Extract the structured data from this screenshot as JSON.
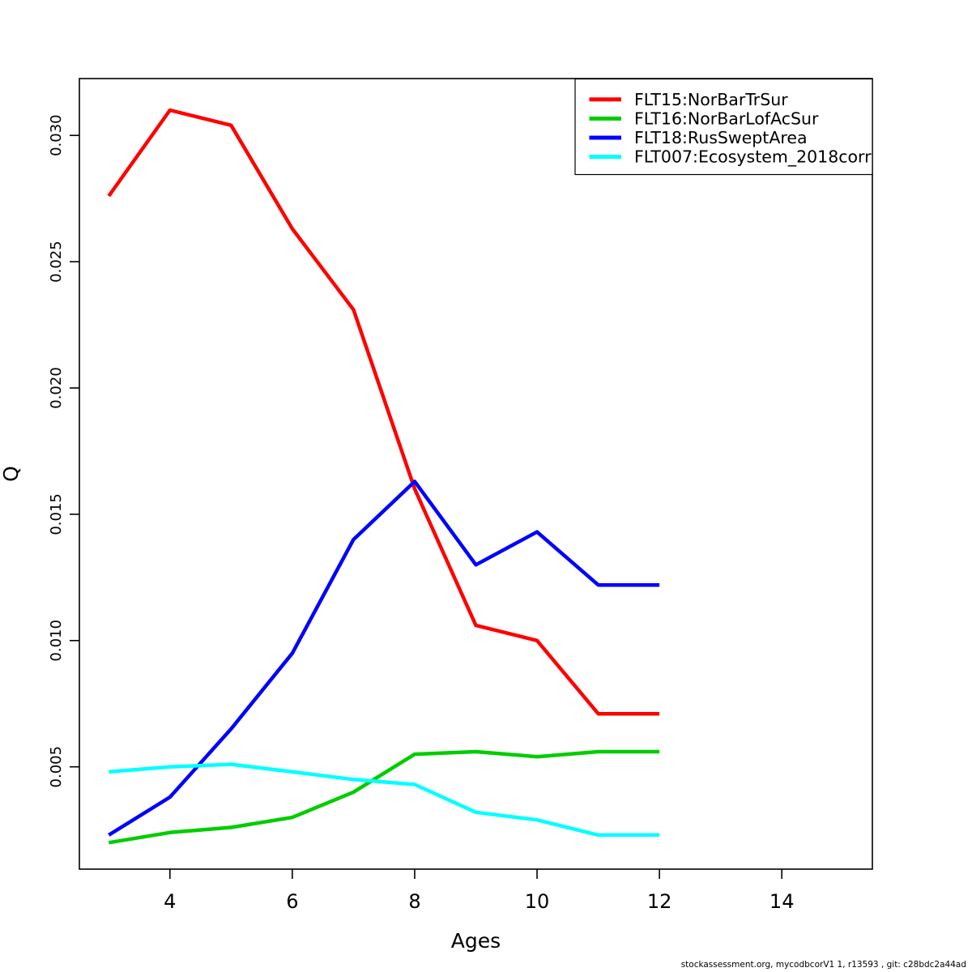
{
  "figure": {
    "footer": "stockassessment.org, mycodbcorV1 1, r13593 , git: c28bdc2a44ad",
    "background": "#ffffff",
    "axis_color": "#000000"
  },
  "chart_data": {
    "type": "line",
    "title": "",
    "xlabel": "Ages",
    "ylabel": "Q",
    "x": [
      3,
      4,
      5,
      6,
      7,
      8,
      9,
      10,
      11,
      12
    ],
    "xlim": [
      2.52,
      15.48
    ],
    "ylim": [
      0.00095,
      0.03225
    ],
    "x_ticks": [
      4,
      6,
      8,
      10,
      12,
      14
    ],
    "x_tick_labels": [
      "4",
      "6",
      "8",
      "10",
      "12",
      "14"
    ],
    "y_ticks": [
      0.005,
      0.01,
      0.015,
      0.02,
      0.025,
      0.03
    ],
    "y_tick_labels": [
      "0.005",
      "0.010",
      "0.015",
      "0.020",
      "0.025",
      "0.030"
    ],
    "grid": false,
    "legend_position": "top-right",
    "series": [
      {
        "name": "FLT15:NorBarTrSur",
        "color": "#FF0000",
        "values": [
          0.0276,
          0.031,
          0.0304,
          0.0263,
          0.0231,
          0.016,
          0.0106,
          0.01,
          0.0071,
          0.0071
        ]
      },
      {
        "name": "FLT16:NorBarLofAcSur",
        "color": "#00CD00",
        "values": [
          0.002,
          0.0024,
          0.0026,
          0.003,
          0.004,
          0.0055,
          0.0056,
          0.0054,
          0.0056,
          0.0056
        ]
      },
      {
        "name": "FLT18:RusSweptArea",
        "color": "#0000FF",
        "values": [
          0.0023,
          0.0038,
          0.0065,
          0.0095,
          0.014,
          0.0163,
          0.013,
          0.0143,
          0.0122,
          0.0122
        ]
      },
      {
        "name": "FLT007:Ecosystem_2018corr",
        "color": "#00FFFF",
        "values": [
          0.0048,
          0.005,
          0.0051,
          0.0048,
          0.0045,
          0.0043,
          0.0032,
          0.0029,
          0.0023,
          0.0023
        ]
      }
    ]
  }
}
